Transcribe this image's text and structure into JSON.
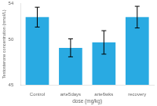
{
  "chart_data": {
    "type": "bar",
    "categories": [
      "Control",
      "arte5days",
      "arte6wks",
      "recovery"
    ],
    "values": [
      52.5,
      49.1,
      49.7,
      52.5
    ],
    "errors": [
      1.1,
      1.0,
      1.3,
      1.2
    ],
    "color": "#29aae2",
    "xlabel": "dose (mg/kg)",
    "ylabel": "Testosterone concentration (nmol/L)",
    "ylim": [
      45,
      54
    ],
    "yticks": [
      45,
      {
        "value": 46,
        "label": ""
      },
      {
        "value": 47,
        "label": ""
      },
      {
        "value": 48,
        "label": ""
      },
      {
        "value": 49,
        "label": ""
      },
      50,
      {
        "value": 51,
        "label": ""
      },
      {
        "value": 52,
        "label": ""
      },
      {
        "value": 53,
        "label": ""
      },
      54
    ],
    "grid": false
  }
}
